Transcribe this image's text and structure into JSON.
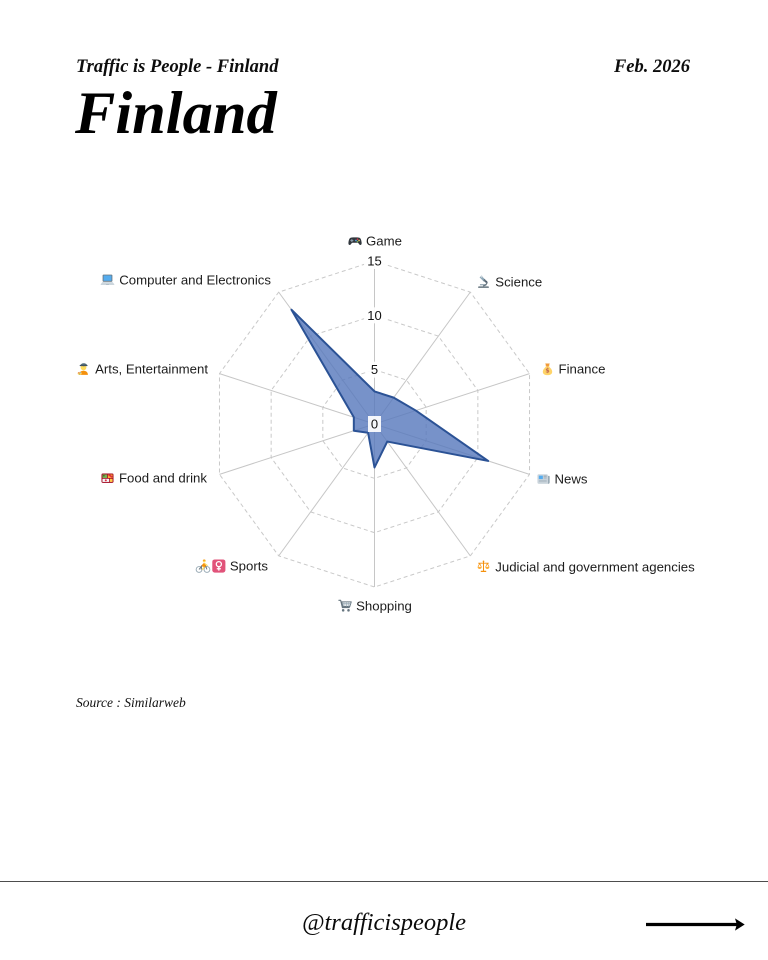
{
  "header": {
    "brand": "Traffic is People - Finland",
    "date": "Feb. 2026",
    "title": "Finland"
  },
  "chart_data": {
    "type": "radar",
    "title": "",
    "ticks": [
      0,
      5,
      10,
      15
    ],
    "max": 15,
    "categories": [
      "Game",
      "Science",
      "Finance",
      "News",
      "Judicial and government agencies",
      "Shopping",
      "Sports",
      "Food and drink",
      "Arts, Entertainment",
      "Computer and Electronics"
    ],
    "icons": [
      "game-controller-icon",
      "microscope-icon",
      "money-bag-icon",
      "newspaper-icon",
      "balance-scale-icon",
      "shopping-cart-icon",
      "woman-biking-icon",
      "bento-box-icon",
      "artist-icon",
      "laptop-icon"
    ],
    "values": [
      3,
      3,
      4,
      11,
      2,
      4,
      1,
      2,
      2,
      13
    ],
    "grid_color": "#c6c6c6",
    "ring_color": "#c9c9c9",
    "fill_color": "rgba(85,119,187,0.8)",
    "stroke_color": "#2b5295",
    "tick_color": "#111111"
  },
  "source_note": "Source : Similarweb",
  "footer": {
    "handle": "@trafficispeople"
  }
}
